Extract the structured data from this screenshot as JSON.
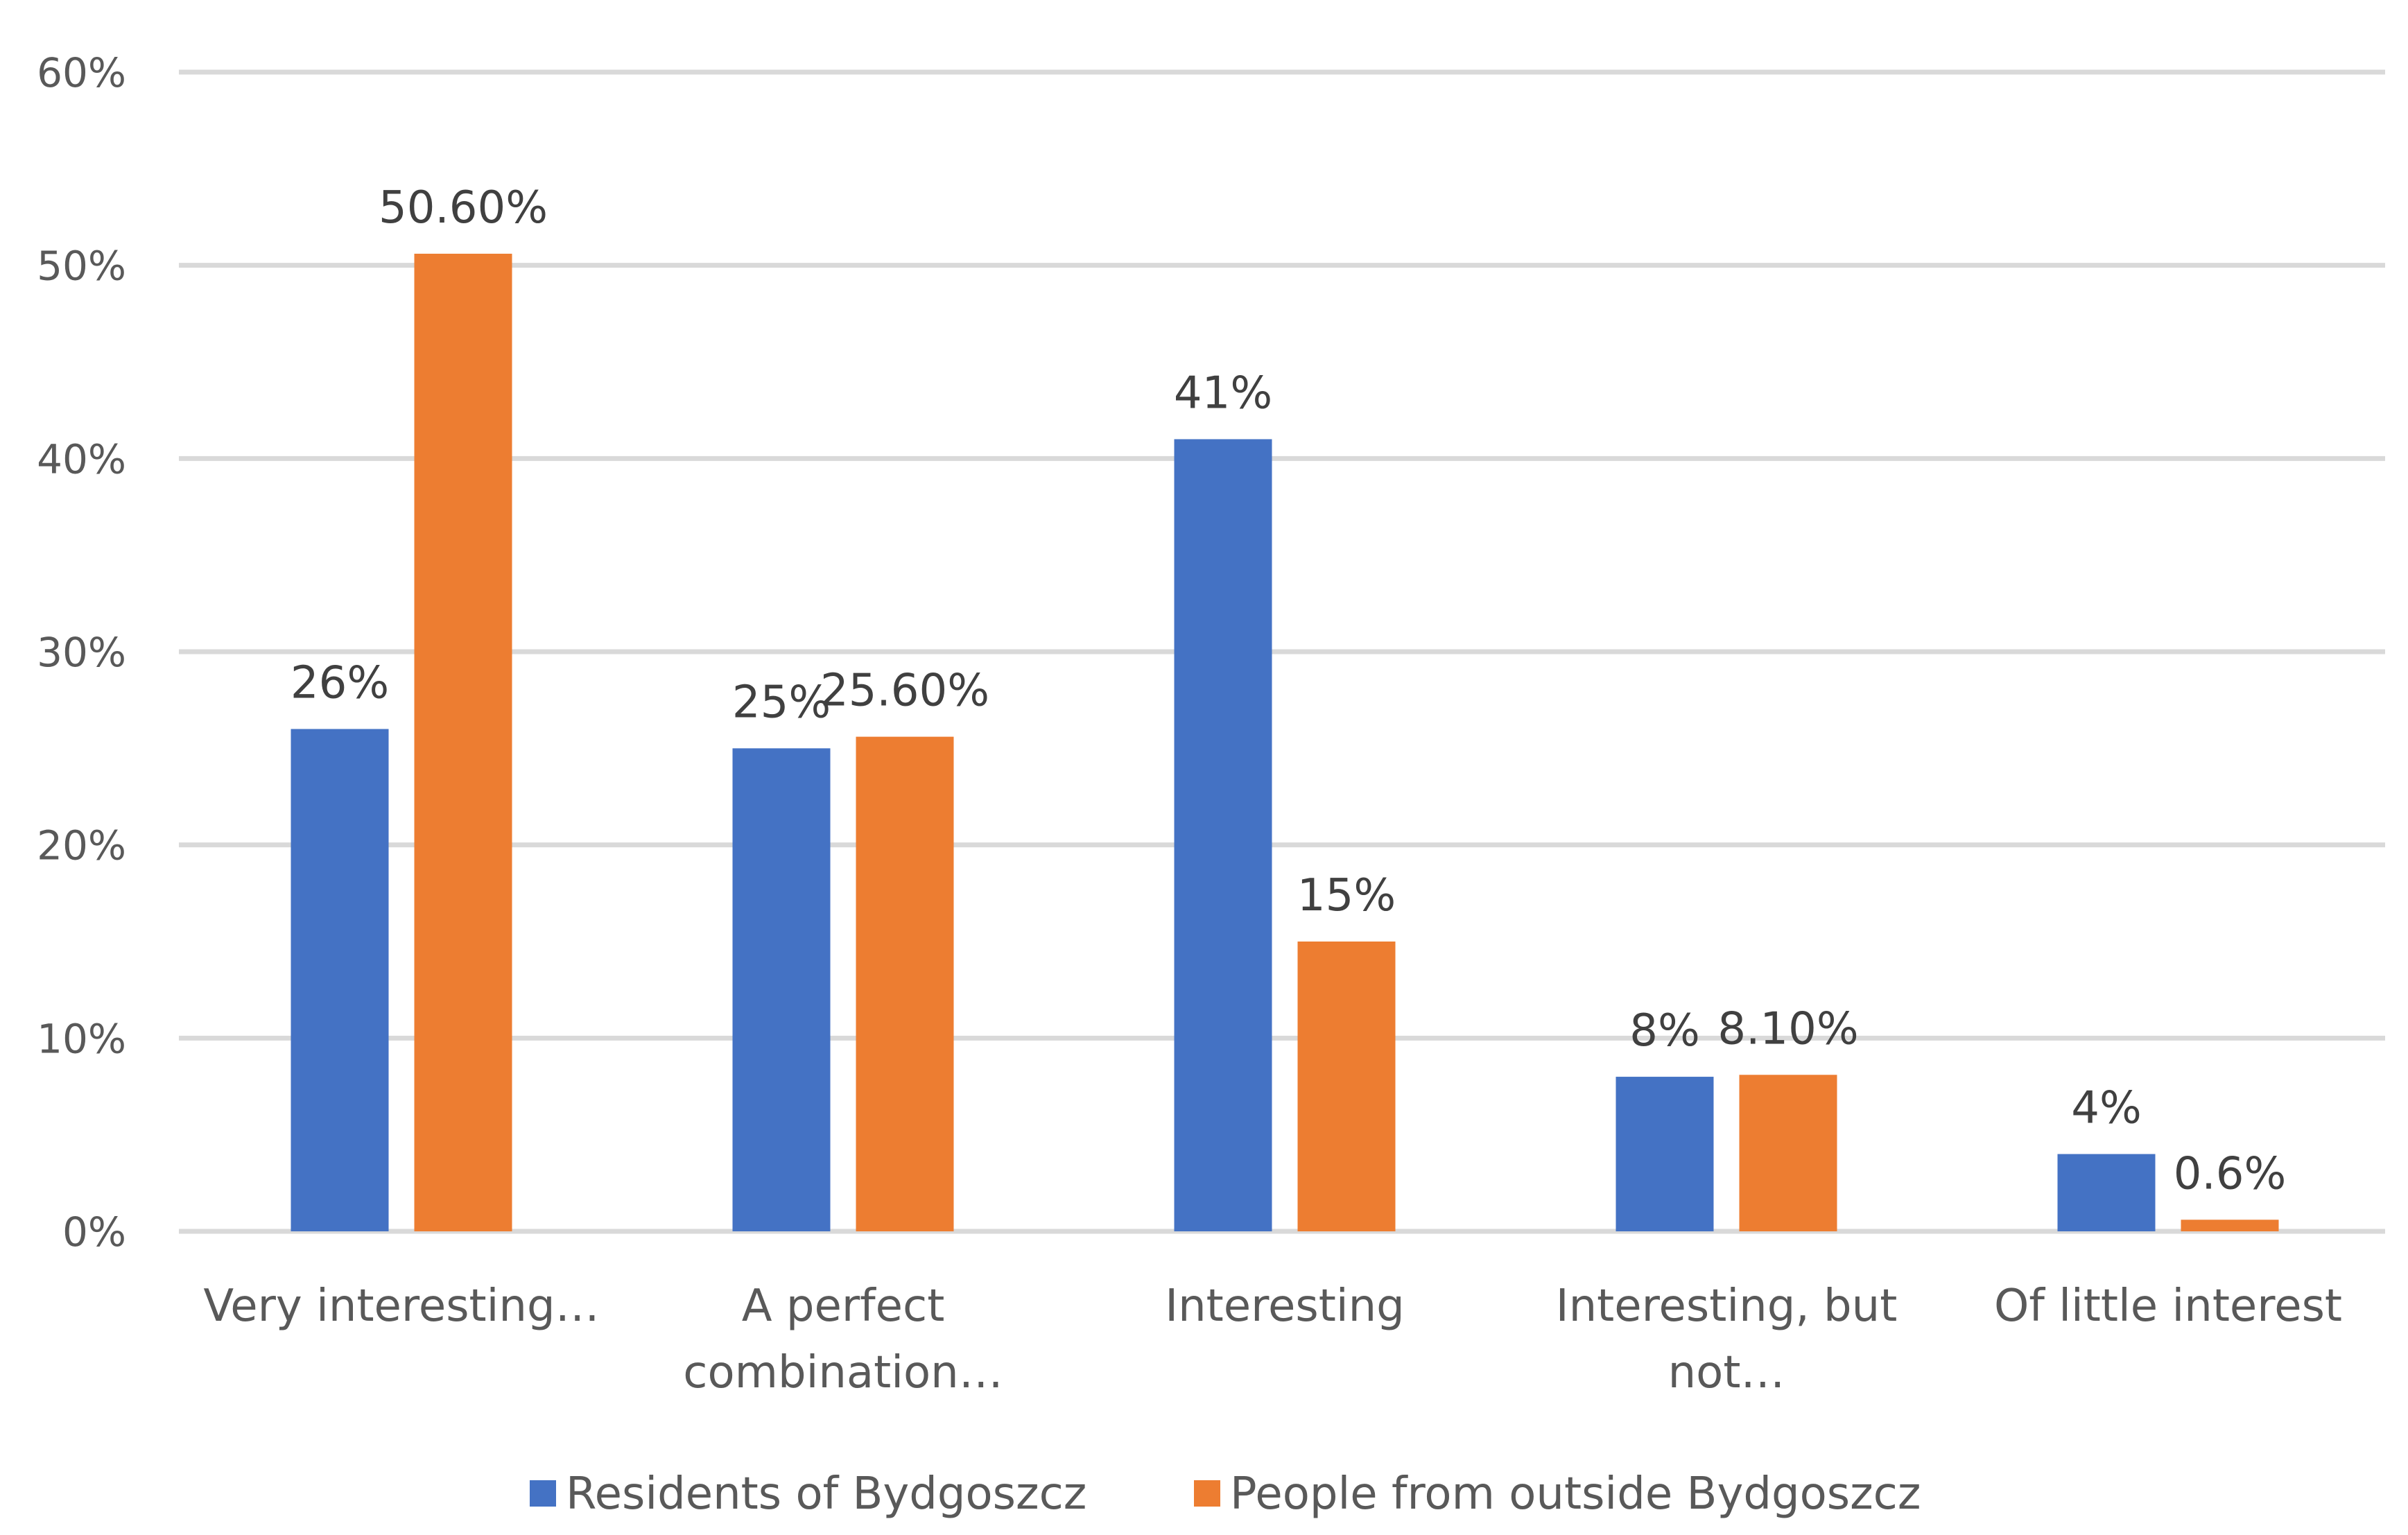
{
  "chart_data": {
    "type": "bar",
    "title": "",
    "xlabel": "",
    "ylabel": "",
    "ylim": [
      0,
      60
    ],
    "yticks": [
      "0%",
      "10%",
      "20%",
      "30%",
      "40%",
      "50%",
      "60%"
    ],
    "grid": true,
    "legend_position": "bottom",
    "categories": [
      [
        "Very interesting…"
      ],
      [
        "A perfect",
        "combination…"
      ],
      [
        "Interesting"
      ],
      [
        "Interesting, but",
        "not…"
      ],
      [
        "Of little interest"
      ]
    ],
    "series": [
      {
        "name": "Residents of Bydgoszcz",
        "color": "#4472C4",
        "values": [
          26,
          25,
          41,
          8,
          4
        ],
        "labels": [
          "26%",
          "25%",
          "41%",
          "8%",
          "4%"
        ]
      },
      {
        "name": "People from outside Bydgoszcz",
        "color": "#ED7D31",
        "values": [
          50.6,
          25.6,
          15,
          8.1,
          0.6
        ],
        "labels": [
          "50.60%",
          "25.60%",
          "15%",
          "8.10%",
          "0.6%"
        ]
      }
    ]
  }
}
